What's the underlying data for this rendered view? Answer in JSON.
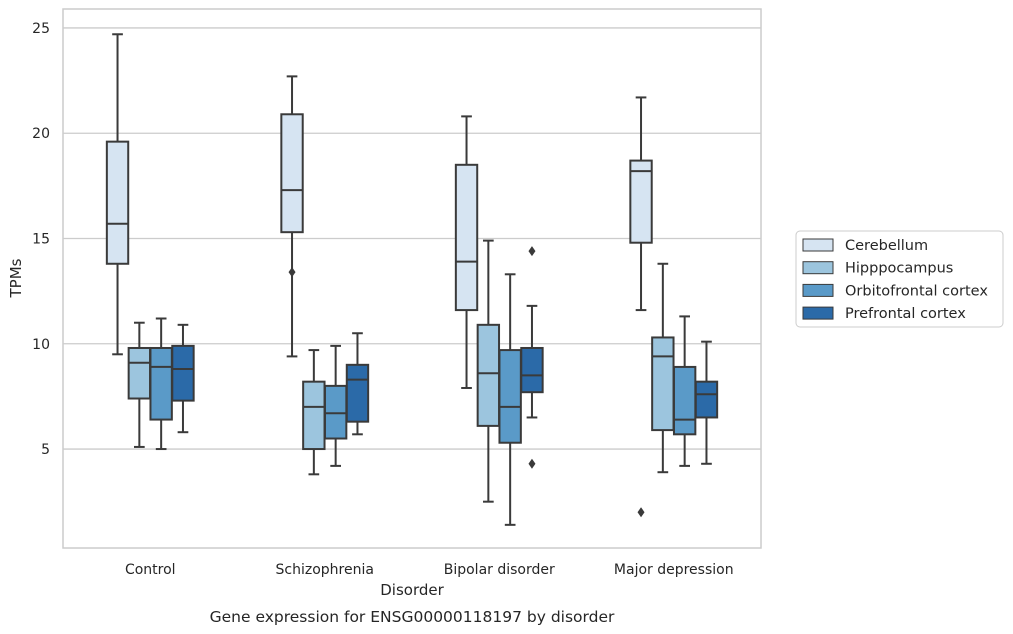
{
  "chart_data": {
    "type": "box",
    "title": "",
    "caption": "Gene expression for ENSG00000118197 by disorder",
    "xlabel": "Disorder",
    "ylabel": "TPMs",
    "categories": [
      "Control",
      "Schizophrenia",
      "Bipolar disorder",
      "Major depression"
    ],
    "yticks": [
      5,
      10,
      15,
      20,
      25
    ],
    "ylim": [
      0.3,
      25.9
    ],
    "grid": "horizontal",
    "legend_position": "right",
    "series": [
      {
        "name": "Cerebellum",
        "color": "#d6e4f2",
        "boxes": [
          {
            "whislo": 9.5,
            "q1": 13.8,
            "med": 15.7,
            "q3": 19.6,
            "whishi": 24.7,
            "fliers": []
          },
          {
            "whislo": 9.4,
            "q1": 15.3,
            "med": 17.3,
            "q3": 20.9,
            "whishi": 22.7,
            "fliers": [
              13.4
            ]
          },
          {
            "whislo": 7.9,
            "q1": 11.6,
            "med": 13.9,
            "q3": 18.5,
            "whishi": 20.8,
            "fliers": []
          },
          {
            "whislo": 11.6,
            "q1": 14.8,
            "med": 18.2,
            "q3": 18.7,
            "whishi": 21.7,
            "fliers": [
              2.0
            ]
          }
        ]
      },
      {
        "name": "Hipppocampus",
        "color": "#9cc5de",
        "boxes": [
          {
            "whislo": 5.1,
            "q1": 7.4,
            "med": 9.1,
            "q3": 9.8,
            "whishi": 11.0,
            "fliers": []
          },
          {
            "whislo": 3.8,
            "q1": 5.0,
            "med": 7.0,
            "q3": 8.2,
            "whishi": 9.7,
            "fliers": []
          },
          {
            "whislo": 2.5,
            "q1": 6.1,
            "med": 8.6,
            "q3": 10.9,
            "whishi": 14.9,
            "fliers": []
          },
          {
            "whislo": 3.9,
            "q1": 5.9,
            "med": 9.4,
            "q3": 10.3,
            "whishi": 13.8,
            "fliers": []
          }
        ]
      },
      {
        "name": "Orbitofrontal cortex",
        "color": "#5a9ac8",
        "boxes": [
          {
            "whislo": 5.0,
            "q1": 6.4,
            "med": 8.9,
            "q3": 9.8,
            "whishi": 11.2,
            "fliers": []
          },
          {
            "whislo": 4.2,
            "q1": 5.5,
            "med": 6.7,
            "q3": 8.0,
            "whishi": 9.9,
            "fliers": []
          },
          {
            "whislo": 1.4,
            "q1": 5.3,
            "med": 7.0,
            "q3": 9.7,
            "whishi": 13.3,
            "fliers": []
          },
          {
            "whislo": 4.2,
            "q1": 5.7,
            "med": 6.4,
            "q3": 8.9,
            "whishi": 11.3,
            "fliers": []
          }
        ]
      },
      {
        "name": "Prefrontal cortex",
        "color": "#2b6aa8",
        "boxes": [
          {
            "whislo": 5.8,
            "q1": 7.3,
            "med": 8.8,
            "q3": 9.9,
            "whishi": 10.9,
            "fliers": []
          },
          {
            "whislo": 5.7,
            "q1": 6.3,
            "med": 8.3,
            "q3": 9.0,
            "whishi": 10.5,
            "fliers": []
          },
          {
            "whislo": 6.5,
            "q1": 7.7,
            "med": 8.5,
            "q3": 9.8,
            "whishi": 11.8,
            "fliers": [
              14.4,
              4.3
            ]
          },
          {
            "whislo": 4.3,
            "q1": 6.5,
            "med": 7.6,
            "q3": 8.2,
            "whishi": 10.1,
            "fliers": []
          }
        ]
      }
    ]
  }
}
